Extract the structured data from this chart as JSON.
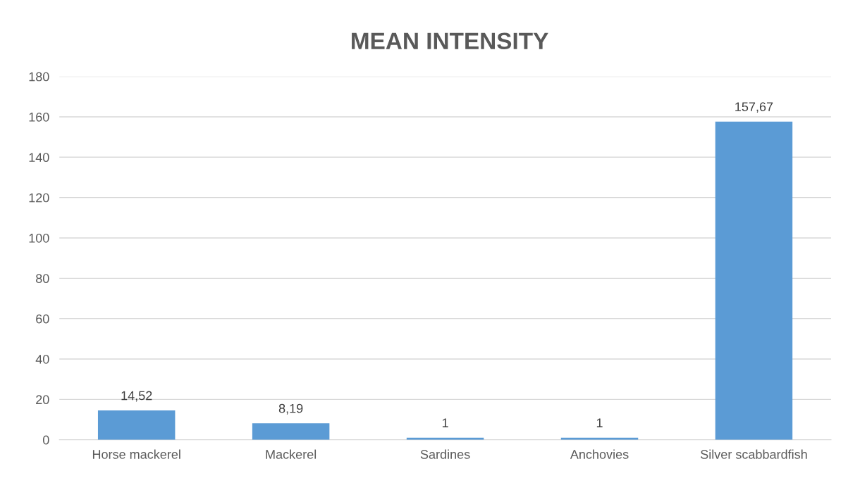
{
  "chart_data": {
    "type": "bar",
    "title": "MEAN INTENSITY",
    "categories": [
      "Horse mackerel",
      "Mackerel",
      "Sardines",
      "Anchovies",
      "Silver scabbardfish"
    ],
    "values": [
      14.52,
      8.19,
      1,
      1,
      157.67
    ],
    "value_labels": [
      "14,52",
      "8,19",
      "1",
      "1",
      "157,67"
    ],
    "color": "#5b9bd5",
    "ylim": [
      0,
      180
    ],
    "yticks": [
      0,
      20,
      40,
      60,
      80,
      100,
      120,
      140,
      160,
      180
    ],
    "grid": "y",
    "legend": false
  }
}
